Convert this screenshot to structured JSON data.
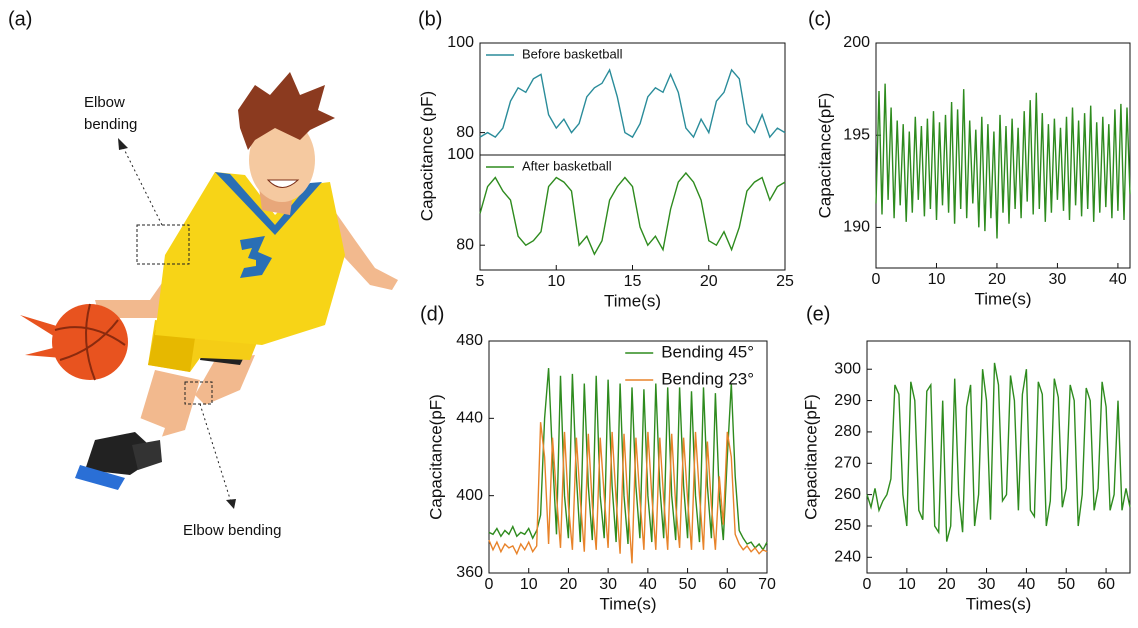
{
  "illustration": {
    "label": "(a)",
    "annotations": [
      "Elbow bending",
      "Elbow bending"
    ]
  },
  "chart_data": [
    {
      "type": "line",
      "panel": "(b)",
      "ylabel": "Capacitance (pF)",
      "legend": "upper left",
      "frame": true,
      "x": [
        5,
        5.5,
        6,
        6.5,
        7,
        7.5,
        8,
        8.5,
        9,
        9.5,
        10,
        10.5,
        11,
        11.5,
        12,
        12.5,
        13,
        13.5,
        14,
        14.5,
        15,
        15.5,
        16,
        16.5,
        17,
        17.5,
        18,
        18.5,
        19,
        19.5,
        20,
        20.5,
        21,
        21.5,
        22,
        22.5,
        23,
        23.5,
        24,
        24.5,
        25
      ],
      "series": [
        {
          "name": "Before basketball",
          "color": "#2a8c9a",
          "values": [
            79,
            80,
            79,
            81,
            87,
            90,
            89,
            92,
            93,
            84,
            81,
            83,
            80,
            82,
            88,
            90,
            91,
            94,
            88,
            80,
            79,
            82,
            88,
            90,
            89,
            93,
            89,
            81,
            79,
            83,
            80,
            87,
            89,
            94,
            92,
            82,
            80,
            84,
            79,
            81,
            80
          ]
        }
      ],
      "xlim": [
        5,
        25
      ],
      "ylim": [
        75,
        100
      ],
      "yticks": [
        80,
        100
      ]
    },
    {
      "type": "line",
      "legend": "upper left",
      "frame": true,
      "xlabel": "Time(s)",
      "x": [
        5,
        5.5,
        6,
        6.5,
        7,
        7.5,
        8,
        8.5,
        9,
        9.5,
        10,
        10.5,
        11,
        11.5,
        12,
        12.5,
        13,
        13.5,
        14,
        14.5,
        15,
        15.5,
        16,
        16.5,
        17,
        17.5,
        18,
        18.5,
        19,
        19.5,
        20,
        20.5,
        21,
        21.5,
        22,
        22.5,
        23,
        23.5,
        24,
        24.5,
        25
      ],
      "series": [
        {
          "name": "After basketball",
          "color": "#2e8b1e",
          "values": [
            87,
            93,
            95,
            92,
            90,
            82,
            80,
            81,
            83,
            93,
            95,
            94,
            92,
            80,
            82,
            78,
            81,
            90,
            93,
            95,
            93,
            84,
            80,
            82,
            79,
            88,
            94,
            96,
            94,
            90,
            81,
            80,
            83,
            79,
            84,
            92,
            94,
            95,
            90,
            93,
            94
          ]
        }
      ],
      "xlim": [
        5,
        25
      ],
      "xticks": [
        5,
        10,
        15,
        20,
        25
      ],
      "ylim": [
        74.5,
        100
      ],
      "yticks": [
        80,
        100
      ]
    },
    {
      "type": "line",
      "panel": "(c)",
      "ylabel": "Capacitance(pF)",
      "xlabel": "Time(s)",
      "frame": true,
      "x": [
        0,
        0.5,
        1,
        1.5,
        2,
        2.5,
        3,
        3.5,
        4,
        4.5,
        5,
        5.5,
        6,
        6.5,
        7,
        7.5,
        8,
        8.5,
        9,
        9.5,
        10,
        10.5,
        11,
        11.5,
        12,
        12.5,
        13,
        13.5,
        14,
        14.5,
        15,
        15.5,
        16,
        16.5,
        17,
        17.5,
        18,
        18.5,
        19,
        19.5,
        20,
        20.5,
        21,
        21.5,
        22,
        22.5,
        23,
        23.5,
        24,
        24.5,
        25,
        25.5,
        26,
        26.5,
        27,
        27.5,
        28,
        28.5,
        29,
        29.5,
        30,
        30.5,
        31,
        31.5,
        32,
        32.5,
        33,
        33.5,
        34,
        34.5,
        35,
        35.5,
        36,
        36.5,
        37,
        37.5,
        38,
        38.5,
        39,
        39.5,
        40,
        40.5,
        41,
        41.5,
        42
      ],
      "series": [
        {
          "color": "#2e8b1e",
          "values": [
            191.3,
            197.4,
            190.7,
            197.8,
            191.5,
            196.5,
            190.5,
            195.8,
            191.2,
            195.6,
            190.3,
            195.2,
            190.8,
            196.0,
            191.5,
            195.5,
            190.6,
            195.9,
            191.0,
            196.3,
            190.4,
            195.7,
            191.2,
            196.1,
            190.8,
            196.8,
            190.2,
            196.4,
            191.0,
            197.5,
            190.5,
            195.8,
            191.3,
            195.3,
            190.0,
            196.0,
            189.8,
            195.6,
            190.5,
            195.2,
            189.4,
            196.1,
            190.8,
            195.5,
            190.2,
            195.9,
            191.0,
            195.4,
            190.5,
            196.3,
            191.4,
            196.9,
            190.7,
            197.3,
            191.0,
            196.2,
            190.3,
            195.6,
            190.8,
            195.9,
            191.5,
            195.4,
            190.9,
            196.0,
            190.4,
            196.5,
            191.2,
            195.8,
            190.6,
            196.2,
            191.0,
            196.6,
            190.3,
            195.7,
            190.8,
            196.0,
            191.1,
            195.6,
            190.5,
            196.4,
            190.9,
            196.7,
            190.4,
            196.5,
            191.8
          ]
        }
      ],
      "xlim": [
        0,
        42
      ],
      "xticks": [
        0,
        10,
        20,
        30,
        40
      ],
      "ylim": [
        187.8,
        200
      ],
      "yticks": [
        190,
        195,
        200
      ]
    },
    {
      "type": "line",
      "panel": "(d)",
      "ylabel": "Capacitance(pF)",
      "xlabel": "Time(s)",
      "legend": "upper right",
      "frame": true,
      "x": [
        0,
        1,
        2,
        3,
        4,
        5,
        6,
        7,
        8,
        9,
        10,
        11,
        12,
        13,
        14,
        15,
        16,
        17,
        18,
        19,
        20,
        21,
        22,
        23,
        24,
        25,
        26,
        27,
        28,
        29,
        30,
        31,
        32,
        33,
        34,
        35,
        36,
        37,
        38,
        39,
        40,
        41,
        42,
        43,
        44,
        45,
        46,
        47,
        48,
        49,
        50,
        51,
        52,
        53,
        54,
        55,
        56,
        57,
        58,
        59,
        60,
        61,
        62,
        63,
        64,
        65,
        66,
        67,
        68,
        69,
        70
      ],
      "series": [
        {
          "name": "Bending 45°",
          "color": "#2e8b1e",
          "values": [
            381,
            380,
            383,
            379,
            382,
            380,
            384,
            379,
            381,
            380,
            383,
            378,
            382,
            390,
            440,
            466,
            420,
            380,
            462,
            400,
            378,
            463,
            410,
            376,
            458,
            405,
            377,
            462,
            400,
            378,
            460,
            405,
            376,
            458,
            400,
            375,
            456,
            405,
            378,
            455,
            400,
            376,
            458,
            405,
            378,
            456,
            400,
            377,
            456,
            405,
            378,
            454,
            400,
            376,
            456,
            405,
            378,
            453,
            400,
            377,
            420,
            458,
            410,
            382,
            378,
            375,
            376,
            373,
            375,
            372,
            376
          ]
        },
        {
          "name": "Bending 23°",
          "color": "#e8832a",
          "values": [
            377,
            372,
            376,
            371,
            375,
            373,
            374,
            370,
            375,
            372,
            376,
            371,
            374,
            438,
            420,
            375,
            430,
            400,
            373,
            433,
            395,
            372,
            430,
            398,
            371,
            432,
            395,
            372,
            430,
            400,
            373,
            433,
            398,
            370,
            432,
            395,
            365,
            430,
            398,
            372,
            433,
            400,
            372,
            430,
            398,
            372,
            432,
            395,
            373,
            430,
            398,
            372,
            433,
            400,
            372,
            428,
            395,
            372,
            410,
            385,
            433,
            420,
            380,
            375,
            372,
            374,
            371,
            373,
            370,
            372,
            371
          ]
        }
      ],
      "xlim": [
        0,
        70
      ],
      "xticks": [
        0,
        10,
        20,
        30,
        40,
        50,
        60,
        70
      ],
      "ylim": [
        360,
        480
      ],
      "yticks": [
        360,
        400,
        440,
        480
      ]
    },
    {
      "type": "line",
      "panel": "(e)",
      "ylabel": "Capacitance(pF)",
      "xlabel": "Times(s)",
      "frame": true,
      "x": [
        0,
        1,
        2,
        3,
        4,
        5,
        6,
        7,
        8,
        9,
        10,
        11,
        12,
        13,
        14,
        15,
        16,
        17,
        18,
        19,
        20,
        21,
        22,
        23,
        24,
        25,
        26,
        27,
        28,
        29,
        30,
        31,
        32,
        33,
        34,
        35,
        36,
        37,
        38,
        39,
        40,
        41,
        42,
        43,
        44,
        45,
        46,
        47,
        48,
        49,
        50,
        51,
        52,
        53,
        54,
        55,
        56,
        57,
        58,
        59,
        60,
        61,
        62,
        63,
        64,
        65,
        66
      ],
      "series": [
        {
          "color": "#2e8b1e",
          "values": [
            260,
            256,
            262,
            255,
            258,
            260,
            265,
            295,
            292,
            260,
            250,
            296,
            290,
            255,
            252,
            293,
            295,
            250,
            248,
            290,
            245,
            250,
            297,
            260,
            248,
            288,
            295,
            250,
            260,
            300,
            290,
            252,
            302,
            295,
            258,
            260,
            298,
            290,
            255,
            292,
            300,
            255,
            253,
            296,
            292,
            250,
            258,
            297,
            291,
            256,
            262,
            295,
            290,
            250,
            260,
            294,
            290,
            255,
            262,
            296,
            288,
            255,
            260,
            290,
            255,
            262,
            256
          ]
        }
      ],
      "xlim": [
        0,
        66
      ],
      "xticks": [
        0,
        10,
        20,
        30,
        40,
        50,
        60
      ],
      "ylim": [
        235,
        309
      ],
      "yticks": [
        240,
        250,
        260,
        270,
        280,
        290,
        300
      ]
    }
  ]
}
